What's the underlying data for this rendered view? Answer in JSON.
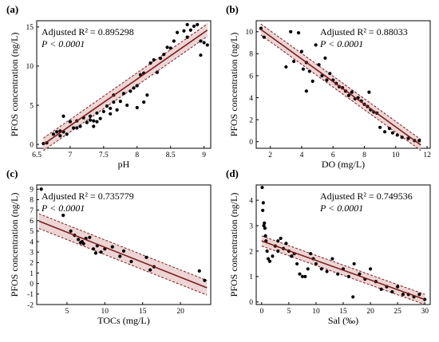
{
  "figure": {
    "colors": {
      "points": "#000000",
      "fit_line": "#7a1f1f",
      "ci_band": "#e6c3c3",
      "ci_lines": "#7a1f1f",
      "axes": "#000000"
    }
  },
  "chart_data": [
    {
      "type": "scatter",
      "panel_label": "(a)",
      "xlabel": "pH",
      "ylabel": "PFOS concentration (ng/L)",
      "stat_r2": "Adjusted R² = 0.895298",
      "stat_p": "P < 0.0001",
      "xlim": [
        6.5,
        9.1
      ],
      "ylim": [
        -0.5,
        15.8
      ],
      "xticks": [
        6.5,
        7,
        7.5,
        8,
        8.5,
        9
      ],
      "xtick_labels": [
        "6.5",
        "7",
        "7.5",
        "8",
        "8.5",
        "9"
      ],
      "yticks": [
        0,
        5,
        10,
        15
      ],
      "ytick_labels": [
        "0",
        "5",
        "10",
        "15"
      ],
      "fit": {
        "x": [
          6.6,
          9.05
        ],
        "y": [
          0.0,
          14.6
        ]
      },
      "ci_halfwidth": 0.8,
      "points": [
        [
          6.6,
          0.1
        ],
        [
          6.65,
          0.2
        ],
        [
          6.75,
          1.3
        ],
        [
          6.8,
          1.6
        ],
        [
          6.85,
          1.7
        ],
        [
          6.85,
          1.1
        ],
        [
          6.9,
          1.6
        ],
        [
          6.9,
          3.6
        ],
        [
          6.95,
          1.3
        ],
        [
          7.0,
          2.9
        ],
        [
          7.05,
          2.1
        ],
        [
          7.1,
          2.1
        ],
        [
          7.1,
          3.0
        ],
        [
          7.15,
          2.3
        ],
        [
          7.2,
          3.4
        ],
        [
          7.25,
          2.8
        ],
        [
          7.3,
          3.6
        ],
        [
          7.3,
          3.1
        ],
        [
          7.35,
          2.3
        ],
        [
          7.35,
          3.0
        ],
        [
          7.4,
          4.0
        ],
        [
          7.4,
          2.9
        ],
        [
          7.45,
          3.3
        ],
        [
          7.5,
          4.2
        ],
        [
          7.55,
          4.9
        ],
        [
          7.6,
          4.6
        ],
        [
          7.6,
          3.9
        ],
        [
          7.65,
          5.4
        ],
        [
          7.65,
          6.3
        ],
        [
          7.7,
          4.4
        ],
        [
          7.75,
          5.5
        ],
        [
          7.8,
          6.5
        ],
        [
          7.85,
          5.0
        ],
        [
          7.9,
          6.8
        ],
        [
          7.95,
          7.2
        ],
        [
          8.0,
          4.7
        ],
        [
          8.0,
          7.5
        ],
        [
          8.05,
          8.9
        ],
        [
          8.1,
          9.1
        ],
        [
          8.1,
          5.4
        ],
        [
          8.15,
          6.3
        ],
        [
          8.2,
          10.4
        ],
        [
          8.25,
          10.8
        ],
        [
          8.3,
          9.2
        ],
        [
          8.35,
          11.0
        ],
        [
          8.4,
          11.5
        ],
        [
          8.45,
          12.4
        ],
        [
          8.5,
          12.3
        ],
        [
          8.55,
          13.2
        ],
        [
          8.6,
          14.3
        ],
        [
          8.7,
          14.5
        ],
        [
          8.75,
          15.3
        ],
        [
          8.8,
          14.6
        ],
        [
          8.85,
          15.1
        ],
        [
          8.9,
          15.3
        ],
        [
          8.95,
          13.2
        ],
        [
          9.0,
          13.0
        ],
        [
          9.05,
          12.7
        ],
        [
          8.95,
          11.4
        ],
        [
          8.75,
          13.7
        ]
      ]
    },
    {
      "type": "scatter",
      "panel_label": "(b)",
      "xlabel": "DO (mg/L)",
      "ylabel": "PFOS concentration (ng/L)",
      "stat_r2": "Adjusted R² = 0.88033",
      "stat_p": "P < 0.0001",
      "xlim": [
        1.1,
        12.2
      ],
      "ylim": [
        -0.6,
        11.0
      ],
      "xticks": [
        2,
        4,
        6,
        8,
        10,
        12
      ],
      "xtick_labels": [
        "2",
        "4",
        "6",
        "8",
        "10",
        "12"
      ],
      "yticks": [
        0,
        2,
        4,
        6,
        8,
        10
      ],
      "ytick_labels": [
        "0",
        "2",
        "4",
        "6",
        "8",
        "10"
      ],
      "fit": {
        "x": [
          1.4,
          11.6
        ],
        "y": [
          10.2,
          -0.3
        ]
      },
      "ci_halfwidth": 0.5,
      "points": [
        [
          1.4,
          10.3
        ],
        [
          1.6,
          9.5
        ],
        [
          3.0,
          6.8
        ],
        [
          3.3,
          10.0
        ],
        [
          3.5,
          7.3
        ],
        [
          3.8,
          9.9
        ],
        [
          4.0,
          8.2
        ],
        [
          4.1,
          6.6
        ],
        [
          4.3,
          7.2
        ],
        [
          4.5,
          6.4
        ],
        [
          4.3,
          4.6
        ],
        [
          4.7,
          5.5
        ],
        [
          4.9,
          8.8
        ],
        [
          5.1,
          7.0
        ],
        [
          5.3,
          6.0
        ],
        [
          5.5,
          7.6
        ],
        [
          5.6,
          5.6
        ],
        [
          5.8,
          6.2
        ],
        [
          6.0,
          5.6
        ],
        [
          6.2,
          5.3
        ],
        [
          6.4,
          5.0
        ],
        [
          6.6,
          4.9
        ],
        [
          6.8,
          4.6
        ],
        [
          7.0,
          4.2
        ],
        [
          7.2,
          4.5
        ],
        [
          7.4,
          3.9
        ],
        [
          7.6,
          4.0
        ],
        [
          7.8,
          3.7
        ],
        [
          8.0,
          3.4
        ],
        [
          8.2,
          3.2
        ],
        [
          8.4,
          2.9
        ],
        [
          8.6,
          2.7
        ],
        [
          8.8,
          2.6
        ],
        [
          9.0,
          1.3
        ],
        [
          9.3,
          0.9
        ],
        [
          9.6,
          1.2
        ],
        [
          9.8,
          0.8
        ],
        [
          10.1,
          0.6
        ],
        [
          10.4,
          0.4
        ],
        [
          10.8,
          0.3
        ],
        [
          11.2,
          0.1
        ],
        [
          11.5,
          0.1
        ],
        [
          8.3,
          4.5
        ]
      ]
    },
    {
      "type": "scatter",
      "panel_label": "(c)",
      "xlabel": "TOCs (mg/L)",
      "ylabel": "PFOS concentration (ng/L)",
      "stat_r2": "Adjusted R² = 0.735779",
      "stat_p": "P < 0.0001",
      "xlim": [
        1.0,
        24.0
      ],
      "ylim": [
        -2.0,
        9.4
      ],
      "xticks": [
        5,
        10,
        15,
        20
      ],
      "xtick_labels": [
        "5",
        "10",
        "15",
        "20"
      ],
      "yticks": [
        -2,
        -1,
        0,
        1,
        2,
        3,
        4,
        5,
        6,
        7,
        8,
        9
      ],
      "ytick_labels": [
        "-2",
        "-1",
        "0",
        "1",
        "2",
        "3",
        "4",
        "5",
        "6",
        "7",
        "8",
        "9"
      ],
      "fit": {
        "x": [
          1.3,
          23.5
        ],
        "y": [
          5.95,
          -0.4
        ]
      },
      "ci_halfwidth": 0.7,
      "points": [
        [
          1.6,
          9.0
        ],
        [
          4.5,
          6.5
        ],
        [
          5.5,
          5.0
        ],
        [
          6.0,
          4.6
        ],
        [
          6.5,
          4.2
        ],
        [
          7.0,
          4.0
        ],
        [
          7.2,
          3.8
        ],
        [
          7.5,
          4.3
        ],
        [
          8.0,
          4.4
        ],
        [
          8.5,
          3.3
        ],
        [
          9.0,
          3.6
        ],
        [
          9.5,
          3.0
        ],
        [
          10.0,
          3.3
        ],
        [
          11.0,
          3.5
        ],
        [
          12.0,
          2.6
        ],
        [
          12.5,
          3.1
        ],
        [
          13.5,
          2.1
        ],
        [
          15.5,
          2.5
        ],
        [
          16.0,
          1.3
        ],
        [
          16.5,
          1.6
        ],
        [
          22.5,
          1.2
        ],
        [
          23.2,
          0.3
        ],
        [
          6.8,
          3.9
        ],
        [
          8.8,
          2.9
        ]
      ]
    },
    {
      "type": "scatter",
      "panel_label": "(d)",
      "xlabel": "Sal (‰)",
      "ylabel": "PFOS concentration (ng/L)",
      "stat_r2": "Adjusted R² = 0.749536",
      "stat_p": "P < 0.0001",
      "xlim": [
        -1.0,
        31.0
      ],
      "ylim": [
        -0.1,
        4.6
      ],
      "xticks": [
        0,
        5,
        10,
        15,
        20,
        25,
        30
      ],
      "xtick_labels": [
        "0",
        "5",
        "10",
        "15",
        "20",
        "25",
        "30"
      ],
      "yticks": [
        0,
        1,
        2,
        3,
        4
      ],
      "ytick_labels": [
        "0",
        "1",
        "2",
        "3",
        "4"
      ],
      "fit": {
        "x": [
          0.0,
          30.0
        ],
        "y": [
          2.4,
          0.1
        ]
      },
      "ci_halfwidth": 0.2,
      "points": [
        [
          0.1,
          4.5
        ],
        [
          0.2,
          3.6
        ],
        [
          0.3,
          3.9
        ],
        [
          0.4,
          3.0
        ],
        [
          0.5,
          3.1
        ],
        [
          0.6,
          2.9
        ],
        [
          0.7,
          2.6
        ],
        [
          0.8,
          2.4
        ],
        [
          1.0,
          2.0
        ],
        [
          1.2,
          1.7
        ],
        [
          1.5,
          1.6
        ],
        [
          2.0,
          1.8
        ],
        [
          2.5,
          2.2
        ],
        [
          3.0,
          2.0
        ],
        [
          3.5,
          2.5
        ],
        [
          4.0,
          2.1
        ],
        [
          4.5,
          2.3
        ],
        [
          5.0,
          2.0
        ],
        [
          5.5,
          1.8
        ],
        [
          6.0,
          1.9
        ],
        [
          6.5,
          1.5
        ],
        [
          7.0,
          1.1
        ],
        [
          7.5,
          1.0
        ],
        [
          8.0,
          1.0
        ],
        [
          8.5,
          1.3
        ],
        [
          9.0,
          1.9
        ],
        [
          9.5,
          1.7
        ],
        [
          10.0,
          1.5
        ],
        [
          11.0,
          1.3
        ],
        [
          12.0,
          1.2
        ],
        [
          13.0,
          1.7
        ],
        [
          14.0,
          1.1
        ],
        [
          15.0,
          1.3
        ],
        [
          16.0,
          1.0
        ],
        [
          17.0,
          1.5
        ],
        [
          18.0,
          1.1
        ],
        [
          19.0,
          0.9
        ],
        [
          20.0,
          1.3
        ],
        [
          21.0,
          0.8
        ],
        [
          22.0,
          0.5
        ],
        [
          23.0,
          0.6
        ],
        [
          24.0,
          0.4
        ],
        [
          25.0,
          0.6
        ],
        [
          26.0,
          0.3
        ],
        [
          27.0,
          0.3
        ],
        [
          28.0,
          0.2
        ],
        [
          29.0,
          0.3
        ],
        [
          30.0,
          0.1
        ],
        [
          16.8,
          0.2
        ],
        [
          3.0,
          2.4
        ]
      ]
    }
  ]
}
